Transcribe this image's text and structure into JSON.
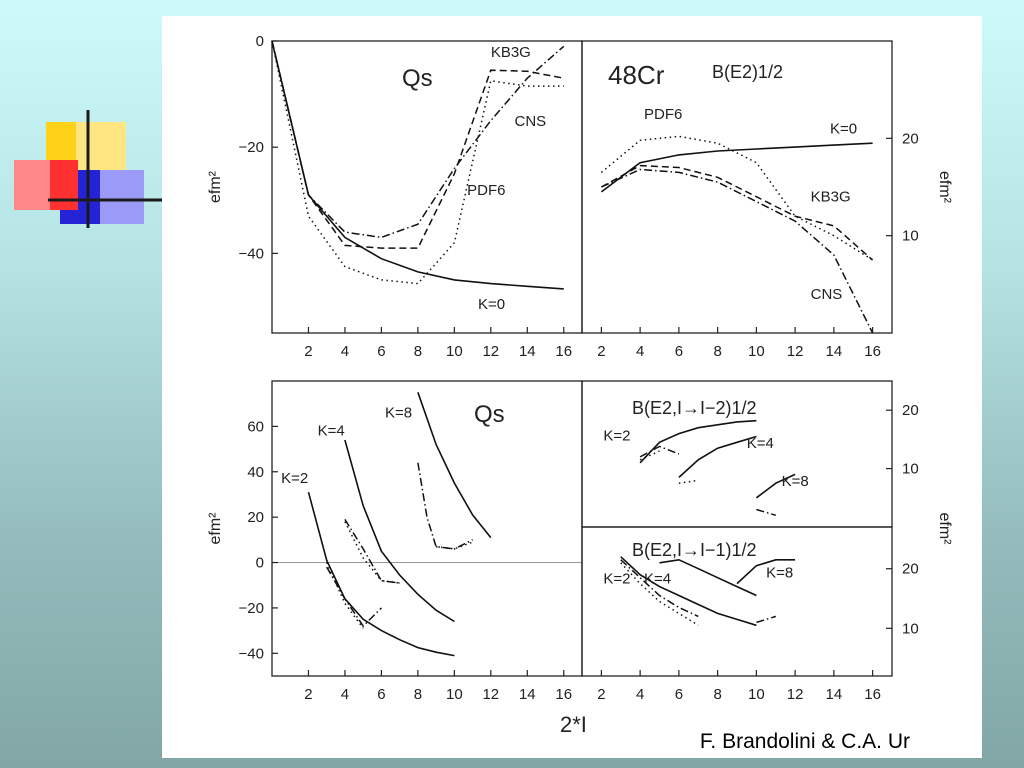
{
  "slide": {
    "credit": "F. Brandolini & C.A. Ur",
    "colors": {
      "bg_top": "#cdfbfb",
      "bg_bottom": "#82a6a6",
      "deco_yellow": "#ffd21a",
      "deco_red": "#ff3030",
      "deco_blue": "#2424d6"
    }
  },
  "figure": {
    "xlabel": "2*I"
  },
  "chart_data": [
    {
      "id": "qs-top",
      "type": "line",
      "title": "Qs",
      "ylabel": "efm²",
      "xlim": [
        0,
        17
      ],
      "ylim": [
        -55,
        0
      ],
      "yticks": [
        0,
        -20,
        -40
      ],
      "xticks": [
        2,
        4,
        6,
        8,
        10,
        12,
        14,
        16
      ],
      "series": [
        {
          "name": "K=0",
          "dash": "solid",
          "x": [
            0,
            2,
            4,
            6,
            8,
            10,
            12,
            14,
            16
          ],
          "y": [
            0,
            -29,
            -37,
            -41,
            -43.5,
            -45,
            -45.7,
            -46.2,
            -46.7
          ]
        },
        {
          "name": "PDF6",
          "dash": "dot",
          "x": [
            0,
            2,
            4,
            6,
            8,
            10,
            12,
            14,
            16
          ],
          "y": [
            0,
            -33,
            -42.5,
            -45,
            -45.7,
            -38,
            -7.5,
            -8.5,
            -8.5
          ]
        },
        {
          "name": "KB3G",
          "dash": "dash",
          "x": [
            0,
            2,
            4,
            6,
            8,
            10,
            12,
            14,
            16
          ],
          "y": [
            0,
            -29,
            -38.5,
            -39,
            -39,
            -25,
            -5.5,
            -5.7,
            -7
          ]
        },
        {
          "name": "CNS",
          "dash": "dashdot",
          "x": [
            0,
            2,
            4,
            6,
            8,
            10,
            12,
            14,
            16
          ],
          "y": [
            0,
            -29,
            -36,
            -37,
            -34.5,
            -24,
            -15,
            -7,
            -1
          ]
        }
      ],
      "labels": [
        {
          "text": "KB3G",
          "x": 12,
          "y": -3
        },
        {
          "text": "CNS",
          "x": 13.3,
          "y": -16
        },
        {
          "text": "PDF6",
          "x": 10.7,
          "y": -29
        },
        {
          "text": "K=0",
          "x": 11.3,
          "y": -50.5
        }
      ]
    },
    {
      "id": "be2-top",
      "type": "line",
      "title": "B(E2)1/2",
      "nucleus": "48Cr",
      "ylabel": "efm²",
      "xlim": [
        1,
        17
      ],
      "ylim": [
        0,
        30
      ],
      "yticks": [
        10,
        20
      ],
      "xticks": [
        2,
        4,
        6,
        8,
        10,
        12,
        14,
        16
      ],
      "series": [
        {
          "name": "K=0",
          "dash": "solid",
          "x": [
            2,
            4,
            6,
            8,
            10,
            12,
            14,
            16
          ],
          "y": [
            14.5,
            17.5,
            18.3,
            18.7,
            18.9,
            19.1,
            19.3,
            19.5
          ]
        },
        {
          "name": "PDF6",
          "dash": "dot",
          "x": [
            2,
            4,
            6,
            8,
            10,
            12,
            14,
            16
          ],
          "y": [
            16.5,
            19.8,
            20.2,
            19.5,
            17.5,
            12,
            10,
            7.5
          ]
        },
        {
          "name": "KB3G",
          "dash": "dash",
          "x": [
            2,
            4,
            6,
            8,
            10,
            12,
            14,
            16
          ],
          "y": [
            15,
            17.2,
            17,
            16,
            14,
            12,
            11,
            7.5
          ]
        },
        {
          "name": "CNS",
          "dash": "dashdot",
          "x": [
            2,
            4,
            6,
            8,
            10,
            12,
            14,
            16
          ],
          "y": [
            15,
            16.8,
            16.5,
            15.5,
            13.5,
            11.5,
            8,
            0
          ]
        }
      ],
      "labels": [
        {
          "text": "PDF6",
          "x": 4.2,
          "y": 22
        },
        {
          "text": "K=0",
          "x": 13.8,
          "y": 20.5
        },
        {
          "text": "KB3G",
          "x": 12.8,
          "y": 13.5
        },
        {
          "text": "CNS",
          "x": 12.8,
          "y": 3.5
        }
      ]
    },
    {
      "id": "qs-bottom",
      "type": "line",
      "title": "Qs",
      "ylabel": "efm²",
      "xlim": [
        0,
        17
      ],
      "ylim": [
        -50,
        80
      ],
      "yticks": [
        60,
        40,
        20,
        0,
        -20,
        -40
      ],
      "xticks": [
        2,
        4,
        6,
        8,
        10,
        12,
        14,
        16
      ],
      "series": [
        {
          "name": "K=2",
          "dash": "solid",
          "x": [
            2,
            3,
            4,
            5,
            6,
            7,
            8,
            9,
            10
          ],
          "y": [
            31,
            1,
            -16,
            -25,
            -30,
            -34,
            -37.5,
            -39.5,
            -41
          ]
        },
        {
          "name": "K=4",
          "dash": "solid",
          "x": [
            4,
            5,
            6,
            7,
            8,
            9,
            10
          ],
          "y": [
            54,
            25,
            5,
            -5.5,
            -14,
            -21,
            -26
          ]
        },
        {
          "name": "K=8",
          "dash": "solid",
          "x": [
            8,
            9,
            10,
            11,
            12
          ],
          "y": [
            75,
            52,
            35,
            21,
            11
          ]
        },
        {
          "name": "K=2 dashdot",
          "dash": "dashdot",
          "x": [
            3,
            4,
            5,
            6
          ],
          "y": [
            -2,
            -16,
            -28,
            -20
          ]
        },
        {
          "name": "K=2 dot",
          "dash": "dot",
          "x": [
            3,
            4,
            5
          ],
          "y": [
            0,
            -18,
            -29
          ]
        },
        {
          "name": "K=4 dashdot",
          "dash": "dashdot",
          "x": [
            4,
            5,
            6,
            7
          ],
          "y": [
            19,
            6,
            -8,
            -9
          ]
        },
        {
          "name": "K=4 dot",
          "dash": "dot",
          "x": [
            4,
            5,
            6,
            7
          ],
          "y": [
            18,
            2,
            -8,
            -9
          ]
        },
        {
          "name": "K=8 dashdot",
          "dash": "dashdot",
          "x": [
            8,
            8.5,
            9,
            10,
            11
          ],
          "y": [
            44,
            20,
            7,
            6,
            10
          ]
        },
        {
          "name": "K=8 dot",
          "dash": "dot",
          "x": [
            9,
            10,
            11
          ],
          "y": [
            7,
            6,
            9
          ]
        }
      ],
      "labels": [
        {
          "text": "K=2",
          "x": 0.5,
          "y": 35
        },
        {
          "text": "K=4",
          "x": 2.5,
          "y": 56
        },
        {
          "text": "K=8",
          "x": 6.2,
          "y": 64
        }
      ]
    },
    {
      "id": "be2-i2",
      "type": "line",
      "title": "B(E2,I→I−2)1/2",
      "ylabel": "efm²",
      "xlim": [
        1,
        17
      ],
      "ylim": [
        0,
        25
      ],
      "yticks": [
        10,
        20
      ],
      "xticks": [],
      "series": [
        {
          "name": "K=4",
          "dash": "solid",
          "x": [
            4,
            5,
            6,
            7,
            8,
            9,
            10
          ],
          "y": [
            11,
            14.5,
            16,
            17,
            17.5,
            18,
            18.2
          ]
        },
        {
          "name": "K=4 lower",
          "dash": "solid",
          "x": [
            6,
            7,
            8,
            9,
            10
          ],
          "y": [
            8.5,
            11.5,
            13.5,
            14.5,
            15.5
          ]
        },
        {
          "name": "K=8",
          "dash": "solid",
          "x": [
            10,
            11,
            12
          ],
          "y": [
            5,
            7.5,
            9
          ]
        },
        {
          "name": "K=2 dashdot",
          "dash": "dashdot",
          "x": [
            4,
            5,
            6
          ],
          "y": [
            12,
            13.8,
            12.5
          ]
        },
        {
          "name": "K=2 dot",
          "dash": "dot",
          "x": [
            4,
            5
          ],
          "y": [
            11.5,
            13
          ]
        },
        {
          "name": "K=4 dot",
          "dash": "dot",
          "x": [
            6,
            7
          ],
          "y": [
            7.5,
            8
          ]
        },
        {
          "name": "K=8 dashdot",
          "dash": "dashdot",
          "x": [
            10,
            11
          ],
          "y": [
            3,
            2
          ]
        }
      ],
      "labels": [
        {
          "text": "K=2",
          "x": 2.1,
          "y": 14.8
        },
        {
          "text": "K=4",
          "x": 9.5,
          "y": 13.5
        },
        {
          "text": "K=8",
          "x": 11.3,
          "y": 7
        }
      ]
    },
    {
      "id": "be2-i1",
      "type": "line",
      "title": "B(E2,I→I−1)1/2",
      "ylabel": "efm²",
      "xlim": [
        1,
        17
      ],
      "ylim": [
        2,
        27
      ],
      "yticks": [
        10,
        20
      ],
      "xticks": [
        2,
        4,
        6,
        8,
        10,
        12,
        14,
        16
      ],
      "series": [
        {
          "name": "K=2",
          "dash": "solid",
          "x": [
            3,
            4,
            5,
            6,
            7,
            8,
            9,
            10
          ],
          "y": [
            22,
            19,
            17,
            15.5,
            14,
            12.5,
            11.5,
            10.5
          ]
        },
        {
          "name": "K=4",
          "dash": "solid",
          "x": [
            5,
            6,
            7,
            8,
            9,
            10
          ],
          "y": [
            21,
            21.5,
            20,
            18.5,
            17,
            15.5
          ]
        },
        {
          "name": "K=8",
          "dash": "solid",
          "x": [
            9,
            10,
            11,
            12
          ],
          "y": [
            17.5,
            20.5,
            21.5,
            21.5
          ]
        },
        {
          "name": "K=2 dashdot",
          "dash": "dashdot",
          "x": [
            3,
            4,
            5,
            6,
            7
          ],
          "y": [
            21.5,
            18.5,
            15.5,
            13.5,
            12
          ]
        },
        {
          "name": "K=2 dot",
          "dash": "dot",
          "x": [
            3,
            4,
            5,
            6,
            7
          ],
          "y": [
            21,
            17.5,
            14.5,
            12.5,
            10.5
          ]
        },
        {
          "name": "K=8 dashdot",
          "dash": "dashdot",
          "x": [
            10,
            11
          ],
          "y": [
            11,
            12
          ]
        }
      ],
      "labels": [
        {
          "text": "K=2",
          "x": 2.1,
          "y": 17.5
        },
        {
          "text": "K=4",
          "x": 4.2,
          "y": 17.5
        },
        {
          "text": "K=8",
          "x": 10.5,
          "y": 18.5
        }
      ]
    }
  ]
}
